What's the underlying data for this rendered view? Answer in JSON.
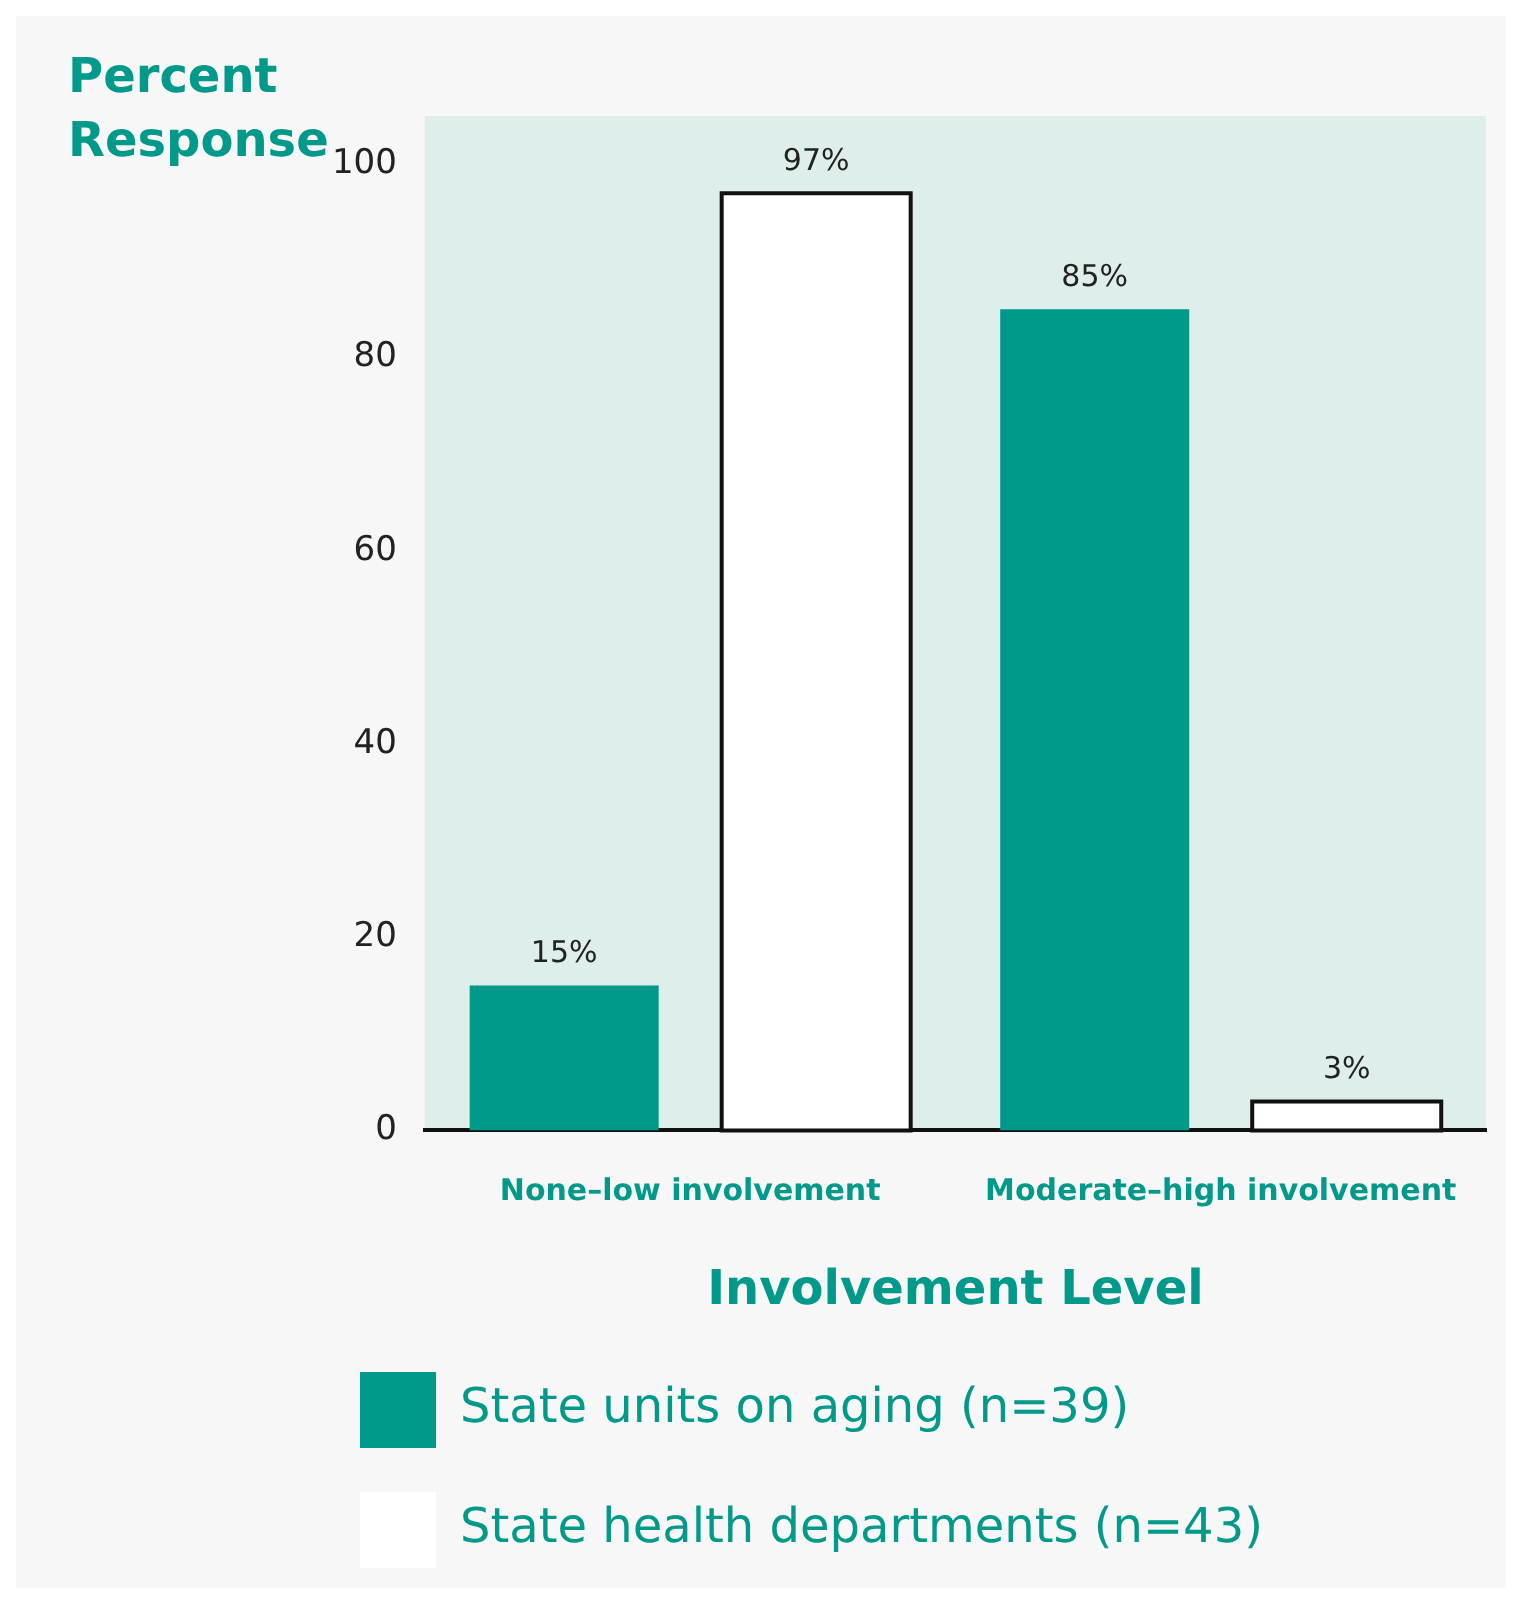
{
  "chart_data": {
    "type": "bar",
    "ylabel": "Percent Response",
    "xlabel": "Involvement Level",
    "categories": [
      "None–low involvement",
      "Moderate–high involvement"
    ],
    "series": [
      {
        "name": "State units on aging (n=39)",
        "color": "#00998a",
        "values": [
          15,
          85
        ],
        "value_labels": [
          "15%",
          "85%"
        ]
      },
      {
        "name": "State health departments (n=43)",
        "color": "#ffffff",
        "values": [
          97,
          3
        ],
        "value_labels": [
          "97%",
          "3%"
        ]
      }
    ],
    "ylim": [
      0,
      105
    ],
    "yticks": [
      0,
      20,
      40,
      60,
      80,
      100
    ],
    "grid": false,
    "legend": "bottom"
  }
}
